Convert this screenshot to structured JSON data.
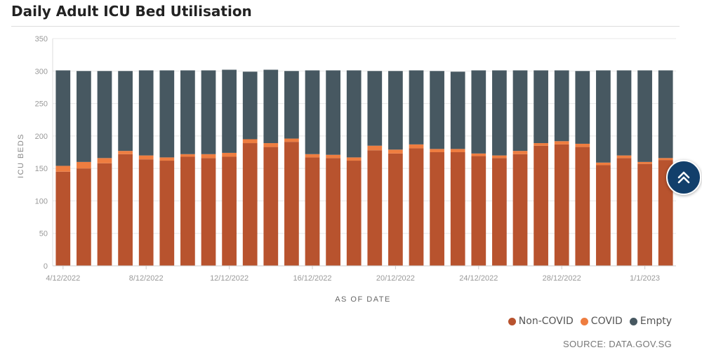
{
  "title": "Daily Adult ICU Bed Utilisation",
  "source_text": "SOURCE: DATA.GOV.SG",
  "scroll_top_button": {
    "icon": "double-chevron-up-icon"
  },
  "colors": {
    "non_covid": "#b8532e",
    "covid": "#ee7d40",
    "empty": "#475861",
    "scroll_button": "#123f6b"
  },
  "legend": [
    {
      "label": "Non-COVID",
      "color": "#b8532e"
    },
    {
      "label": "COVID",
      "color": "#ee7d40"
    },
    {
      "label": "Empty",
      "color": "#475861"
    }
  ],
  "chart_data": {
    "type": "bar",
    "stacked": true,
    "xlabel": "AS OF DATE",
    "ylabel": "ICU BEDS",
    "ylim": [
      0,
      350
    ],
    "yticks": [
      0,
      50,
      100,
      150,
      200,
      250,
      300,
      350
    ],
    "grid": true,
    "legend_position": "bottom-right",
    "x_tick_labels": [
      "4/12/2022",
      "8/12/2022",
      "12/12/2022",
      "16/12/2022",
      "20/12/2022",
      "24/12/2022",
      "28/12/2022",
      "1/1/2023"
    ],
    "categories": [
      "4/12/2022",
      "5/12/2022",
      "6/12/2022",
      "7/12/2022",
      "8/12/2022",
      "9/12/2022",
      "10/12/2022",
      "11/12/2022",
      "12/12/2022",
      "13/12/2022",
      "14/12/2022",
      "15/12/2022",
      "16/12/2022",
      "17/12/2022",
      "18/12/2022",
      "19/12/2022",
      "20/12/2022",
      "21/12/2022",
      "22/12/2022",
      "23/12/2022",
      "24/12/2022",
      "25/12/2022",
      "26/12/2022",
      "27/12/2022",
      "28/12/2022",
      "29/12/2022",
      "30/12/2022",
      "31/12/2022",
      "1/1/2023",
      "2/1/2023"
    ],
    "series": [
      {
        "name": "Non-COVID",
        "values": [
          145,
          150,
          158,
          172,
          164,
          162,
          168,
          166,
          168,
          189,
          183,
          191,
          167,
          166,
          162,
          178,
          173,
          181,
          175,
          175,
          169,
          166,
          172,
          185,
          187,
          183,
          155,
          166,
          157,
          163
        ]
      },
      {
        "name": "COVID",
        "values": [
          9,
          10,
          8,
          5,
          6,
          5,
          4,
          6,
          6,
          6,
          6,
          5,
          5,
          5,
          5,
          7,
          6,
          6,
          5,
          5,
          4,
          4,
          5,
          4,
          5,
          5,
          4,
          4,
          3,
          3
        ]
      },
      {
        "name": "Empty",
        "values": [
          147,
          140,
          134,
          123,
          131,
          134,
          129,
          129,
          128,
          104,
          113,
          104,
          129,
          130,
          134,
          115,
          121,
          114,
          120,
          119,
          128,
          131,
          124,
          112,
          109,
          112,
          142,
          131,
          141,
          135
        ]
      }
    ]
  }
}
